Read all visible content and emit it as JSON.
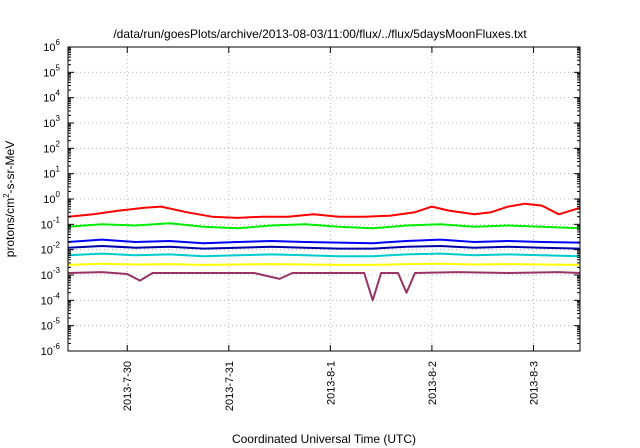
{
  "chart_data": {
    "type": "line",
    "title": "/data/run/goesPlots/archive/2013-08-03/11:00/flux/../flux/5daysMoonFluxes.txt",
    "xlabel": "Coordinated Universal Time (UTC)",
    "ylabel_parts": [
      "protons/cm",
      "2",
      "-s-sr-MeV"
    ],
    "y_scale": "log",
    "ylim": [
      1e-06,
      1000000.0
    ],
    "y_ticks": [
      {
        "base": "10",
        "exp": "-6",
        "value": 1e-06
      },
      {
        "base": "10",
        "exp": "-5",
        "value": 1e-05
      },
      {
        "base": "10",
        "exp": "-4",
        "value": 0.0001
      },
      {
        "base": "10",
        "exp": "-3",
        "value": 0.001
      },
      {
        "base": "10",
        "exp": "-2",
        "value": 0.01
      },
      {
        "base": "10",
        "exp": "-1",
        "value": 0.1
      },
      {
        "base": "10",
        "exp": "0",
        "value": 1
      },
      {
        "base": "10",
        "exp": "1",
        "value": 10
      },
      {
        "base": "10",
        "exp": "2",
        "value": 100
      },
      {
        "base": "10",
        "exp": "3",
        "value": 1000
      },
      {
        "base": "10",
        "exp": "4",
        "value": 10000
      },
      {
        "base": "10",
        "exp": "5",
        "value": 100000
      },
      {
        "base": "10",
        "exp": "6",
        "value": 1000000
      }
    ],
    "xlim": [
      "2013-07-29 10:00",
      "2013-08-03 11:00"
    ],
    "x_ticks": [
      {
        "label": "2013-7-30",
        "value": "2013-07-30 00:00"
      },
      {
        "label": "2013-7-31",
        "value": "2013-07-31 00:00"
      },
      {
        "label": "2013-8-1",
        "value": "2013-08-01 00:00"
      },
      {
        "label": "2013-8-2",
        "value": "2013-08-02 00:00"
      },
      {
        "label": "2013-8-3",
        "value": "2013-08-03 00:00"
      }
    ],
    "grid": true,
    "series": [
      {
        "color": "#ff0000",
        "points": [
          [
            "2013-07-29 10:00",
            0.2
          ],
          [
            "2013-07-29 16:00",
            0.25
          ],
          [
            "2013-07-29 22:00",
            0.35
          ],
          [
            "2013-07-30 04:00",
            0.45
          ],
          [
            "2013-07-30 08:00",
            0.5
          ],
          [
            "2013-07-30 14:00",
            0.3
          ],
          [
            "2013-07-30 20:00",
            0.2
          ],
          [
            "2013-07-31 02:00",
            0.18
          ],
          [
            "2013-07-31 08:00",
            0.2
          ],
          [
            "2013-07-31 14:00",
            0.2
          ],
          [
            "2013-07-31 20:00",
            0.25
          ],
          [
            "2013-08-01 02:00",
            0.2
          ],
          [
            "2013-08-01 08:00",
            0.2
          ],
          [
            "2013-08-01 14:00",
            0.22
          ],
          [
            "2013-08-01 20:00",
            0.3
          ],
          [
            "2013-08-02 00:00",
            0.5
          ],
          [
            "2013-08-02 04:00",
            0.35
          ],
          [
            "2013-08-02 10:00",
            0.25
          ],
          [
            "2013-08-02 14:00",
            0.3
          ],
          [
            "2013-08-02 18:00",
            0.5
          ],
          [
            "2013-08-02 22:00",
            0.65
          ],
          [
            "2013-08-03 02:00",
            0.55
          ],
          [
            "2013-08-03 06:00",
            0.25
          ],
          [
            "2013-08-03 11:00",
            0.45
          ]
        ]
      },
      {
        "color": "#00ee00",
        "points": [
          [
            "2013-07-29 10:00",
            0.08
          ],
          [
            "2013-07-29 18:00",
            0.1
          ],
          [
            "2013-07-30 02:00",
            0.09
          ],
          [
            "2013-07-30 10:00",
            0.11
          ],
          [
            "2013-07-30 18:00",
            0.08
          ],
          [
            "2013-07-31 02:00",
            0.07
          ],
          [
            "2013-07-31 10:00",
            0.09
          ],
          [
            "2013-07-31 18:00",
            0.1
          ],
          [
            "2013-08-01 02:00",
            0.08
          ],
          [
            "2013-08-01 10:00",
            0.07
          ],
          [
            "2013-08-01 18:00",
            0.09
          ],
          [
            "2013-08-02 02:00",
            0.1
          ],
          [
            "2013-08-02 10:00",
            0.08
          ],
          [
            "2013-08-02 18:00",
            0.09
          ],
          [
            "2013-08-03 02:00",
            0.08
          ],
          [
            "2013-08-03 11:00",
            0.07
          ]
        ]
      },
      {
        "color": "#0000ff",
        "points": [
          [
            "2013-07-29 10:00",
            0.02
          ],
          [
            "2013-07-29 18:00",
            0.025
          ],
          [
            "2013-07-30 02:00",
            0.02
          ],
          [
            "2013-07-30 10:00",
            0.022
          ],
          [
            "2013-07-30 18:00",
            0.018
          ],
          [
            "2013-07-31 02:00",
            0.02
          ],
          [
            "2013-07-31 10:00",
            0.022
          ],
          [
            "2013-07-31 18:00",
            0.02
          ],
          [
            "2013-08-01 02:00",
            0.019
          ],
          [
            "2013-08-01 10:00",
            0.018
          ],
          [
            "2013-08-01 18:00",
            0.022
          ],
          [
            "2013-08-02 02:00",
            0.025
          ],
          [
            "2013-08-02 10:00",
            0.02
          ],
          [
            "2013-08-02 18:00",
            0.022
          ],
          [
            "2013-08-03 02:00",
            0.02
          ],
          [
            "2013-08-03 11:00",
            0.019
          ]
        ]
      },
      {
        "color": "#0000aa",
        "points": [
          [
            "2013-07-29 10:00",
            0.012
          ],
          [
            "2013-07-29 18:00",
            0.014
          ],
          [
            "2013-07-30 02:00",
            0.012
          ],
          [
            "2013-07-30 10:00",
            0.013
          ],
          [
            "2013-07-30 18:00",
            0.011
          ],
          [
            "2013-07-31 02:00",
            0.012
          ],
          [
            "2013-07-31 10:00",
            0.013
          ],
          [
            "2013-07-31 18:00",
            0.012
          ],
          [
            "2013-08-01 02:00",
            0.011
          ],
          [
            "2013-08-01 10:00",
            0.011
          ],
          [
            "2013-08-01 18:00",
            0.013
          ],
          [
            "2013-08-02 02:00",
            0.014
          ],
          [
            "2013-08-02 10:00",
            0.012
          ],
          [
            "2013-08-02 18:00",
            0.013
          ],
          [
            "2013-08-03 02:00",
            0.012
          ],
          [
            "2013-08-03 11:00",
            0.011
          ]
        ]
      },
      {
        "color": "#00cccc",
        "points": [
          [
            "2013-07-29 10:00",
            0.006
          ],
          [
            "2013-07-29 18:00",
            0.007
          ],
          [
            "2013-07-30 02:00",
            0.006
          ],
          [
            "2013-07-30 10:00",
            0.0065
          ],
          [
            "2013-07-30 18:00",
            0.0055
          ],
          [
            "2013-07-31 02:00",
            0.006
          ],
          [
            "2013-07-31 10:00",
            0.0065
          ],
          [
            "2013-07-31 18:00",
            0.006
          ],
          [
            "2013-08-01 02:00",
            0.0055
          ],
          [
            "2013-08-01 10:00",
            0.0055
          ],
          [
            "2013-08-01 18:00",
            0.0065
          ],
          [
            "2013-08-02 02:00",
            0.007
          ],
          [
            "2013-08-02 10:00",
            0.006
          ],
          [
            "2013-08-02 18:00",
            0.0065
          ],
          [
            "2013-08-03 02:00",
            0.006
          ],
          [
            "2013-08-03 11:00",
            0.0055
          ]
        ]
      },
      {
        "color": "#ffff00",
        "points": [
          [
            "2013-07-29 10:00",
            0.0025
          ],
          [
            "2013-07-29 18:00",
            0.0028
          ],
          [
            "2013-07-30 02:00",
            0.0026
          ],
          [
            "2013-07-30 10:00",
            0.0027
          ],
          [
            "2013-07-30 18:00",
            0.0025
          ],
          [
            "2013-07-31 02:00",
            0.0026
          ],
          [
            "2013-07-31 10:00",
            0.0027
          ],
          [
            "2013-07-31 18:00",
            0.0026
          ],
          [
            "2013-08-01 02:00",
            0.0025
          ],
          [
            "2013-08-01 10:00",
            0.0025
          ],
          [
            "2013-08-01 18:00",
            0.0027
          ],
          [
            "2013-08-02 02:00",
            0.0028
          ],
          [
            "2013-08-02 10:00",
            0.0026
          ],
          [
            "2013-08-02 18:00",
            0.0027
          ],
          [
            "2013-08-03 02:00",
            0.0026
          ],
          [
            "2013-08-03 11:00",
            0.0025
          ]
        ]
      },
      {
        "color": "#993366",
        "points": [
          [
            "2013-07-29 10:00",
            0.0012
          ],
          [
            "2013-07-29 18:00",
            0.0013
          ],
          [
            "2013-07-30 00:00",
            0.0011
          ],
          [
            "2013-07-30 03:00",
            0.0006
          ],
          [
            "2013-07-30 06:00",
            0.0012
          ],
          [
            "2013-07-30 18:00",
            0.0012
          ],
          [
            "2013-07-31 06:00",
            0.0012
          ],
          [
            "2013-07-31 12:00",
            0.0007
          ],
          [
            "2013-07-31 15:00",
            0.0012
          ],
          [
            "2013-08-01 00:00",
            0.0012
          ],
          [
            "2013-08-01 08:00",
            0.0012
          ],
          [
            "2013-08-01 10:00",
            0.0001
          ],
          [
            "2013-08-01 12:00",
            0.0012
          ],
          [
            "2013-08-01 16:00",
            0.0012
          ],
          [
            "2013-08-01 18:00",
            0.0002
          ],
          [
            "2013-08-01 20:00",
            0.0012
          ],
          [
            "2013-08-02 06:00",
            0.0013
          ],
          [
            "2013-08-02 18:00",
            0.0012
          ],
          [
            "2013-08-03 06:00",
            0.0013
          ],
          [
            "2013-08-03 11:00",
            0.0012
          ]
        ]
      }
    ]
  }
}
